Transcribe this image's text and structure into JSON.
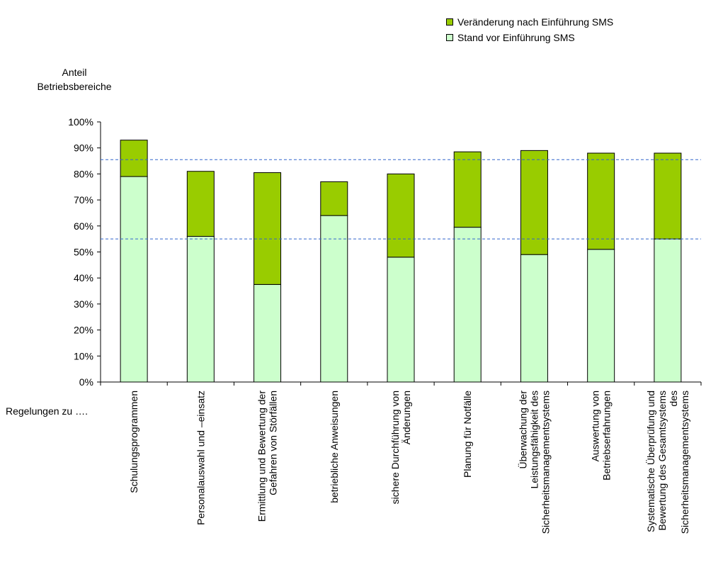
{
  "chart_data": {
    "type": "bar",
    "stacked": true,
    "xprefix": "Regelungen zu ….",
    "ylabel": [
      "Anteil",
      "Betriebsbereiche"
    ],
    "ylim": [
      0,
      100
    ],
    "yticks": [
      "0%",
      "10%",
      "20%",
      "30%",
      "40%",
      "50%",
      "60%",
      "70%",
      "80%",
      "90%",
      "100%"
    ],
    "categories": [
      [
        "Schulungsprogrammen"
      ],
      [
        "Personalauswahl und –einsatz"
      ],
      [
        "Ermittlung und Bewertung der",
        "Gefahren von Störfällen"
      ],
      [
        "betriebliche Anweisungen"
      ],
      [
        "sichere Durchführung von",
        "Änderungen"
      ],
      [
        "Planung für Notfälle"
      ],
      [
        "Überwachung der",
        "Leistungsfähigkeit des",
        "Sicherheitsmanagementsystems"
      ],
      [
        "Auswertung von",
        "Betriebserfahrungen"
      ],
      [
        "Systematische Überprüfung und",
        "Bewertung des Gesamtsystems",
        "des",
        "Sicherheitsmanagementsystems"
      ]
    ],
    "series": [
      {
        "name": "Stand vor Einführung SMS",
        "color": "#ccffcc",
        "values": [
          79,
          56,
          37.5,
          64,
          48,
          59.5,
          49,
          51,
          55
        ]
      },
      {
        "name": "Veränderung nach Einführung SMS",
        "color": "#99cc00",
        "values": [
          14,
          25,
          43,
          13,
          32,
          29,
          40,
          37,
          33
        ]
      }
    ],
    "reference_lines": [
      85.5,
      55
    ],
    "reference_line_color": "#3366cc",
    "grid": false,
    "legend_position": "top-right"
  }
}
